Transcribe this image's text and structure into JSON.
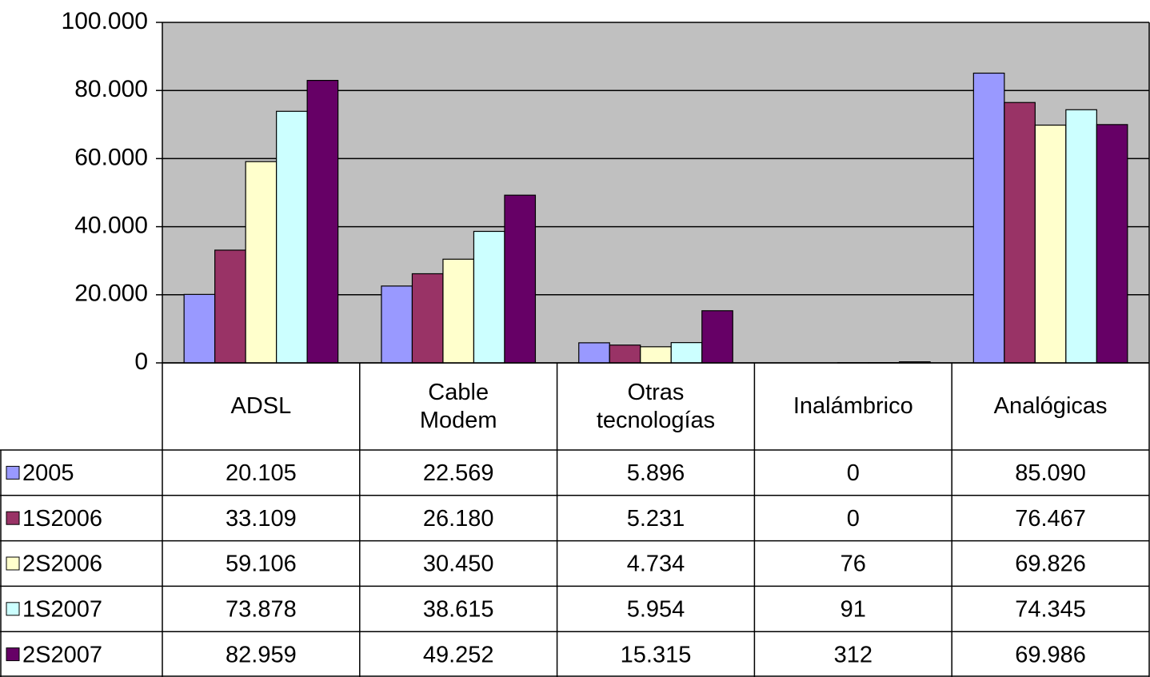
{
  "chart_data": {
    "type": "bar",
    "categories": [
      "ADSL",
      "Cable Modem",
      "Otras tecnologías",
      "Inalámbrico",
      "Analógicas"
    ],
    "series": [
      {
        "name": "2005",
        "color": "#9999ff",
        "values": [
          20105,
          22569,
          5896,
          0,
          85090
        ],
        "value_labels": [
          "20.105",
          "22.569",
          "5.896",
          "0",
          "85.090"
        ]
      },
      {
        "name": "1S2006",
        "color": "#993366",
        "values": [
          33109,
          26180,
          5231,
          0,
          76467
        ],
        "value_labels": [
          "33.109",
          "26.180",
          "5.231",
          "0",
          "76.467"
        ]
      },
      {
        "name": "2S2006",
        "color": "#ffffcc",
        "values": [
          59106,
          30450,
          4734,
          76,
          69826
        ],
        "value_labels": [
          "59.106",
          "30.450",
          "4.734",
          "76",
          "69.826"
        ]
      },
      {
        "name": "1S2007",
        "color": "#ccffff",
        "values": [
          73878,
          38615,
          5954,
          91,
          74345
        ],
        "value_labels": [
          "73.878",
          "38.615",
          "5.954",
          "91",
          "74.345"
        ]
      },
      {
        "name": "2S2007",
        "color": "#660066",
        "values": [
          82959,
          49252,
          15315,
          312,
          69986
        ],
        "value_labels": [
          "82.959",
          "49.252",
          "15.315",
          "312",
          "69.986"
        ]
      }
    ],
    "ylim": [
      0,
      100000
    ],
    "yticks": [
      0,
      {
        "value": 20000,
        "label": "20.000"
      },
      {
        "value": 40000,
        "label": "40.000"
      },
      {
        "value": 60000,
        "label": "60.000"
      },
      {
        "value": 80000,
        "label": "80.000"
      },
      {
        "value": 100000,
        "label": "100.000"
      }
    ],
    "grid": true,
    "plot_background": "#c0c0c0",
    "legend": "table"
  }
}
